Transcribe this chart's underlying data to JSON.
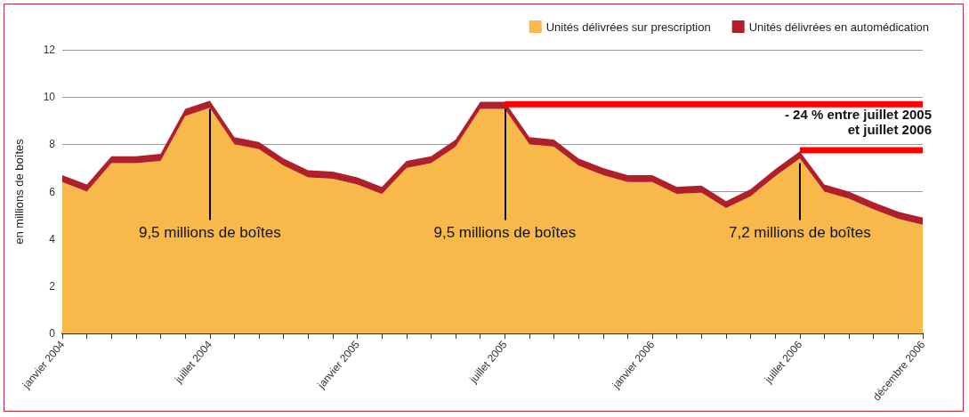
{
  "chart_data": {
    "type": "area",
    "stacked": true,
    "ylabel": "en millions de boîtes",
    "categories": [
      "janvier 2004",
      null,
      null,
      null,
      null,
      null,
      "juillet 2004",
      null,
      null,
      null,
      null,
      null,
      "janvier 2005",
      null,
      null,
      null,
      null,
      null,
      "juillet 2005",
      null,
      null,
      null,
      null,
      null,
      "janvier 2006",
      null,
      null,
      null,
      null,
      null,
      "juillet 2006",
      null,
      null,
      null,
      null,
      "décembre 2006"
    ],
    "series": [
      {
        "name": "Unités délivrées sur prescription",
        "color": "#f9b94a",
        "values": [
          6.4,
          6.0,
          7.2,
          7.2,
          7.3,
          9.2,
          9.55,
          8.0,
          7.8,
          7.1,
          6.6,
          6.55,
          6.3,
          5.9,
          7.0,
          7.2,
          7.9,
          9.5,
          9.5,
          8.0,
          7.9,
          7.1,
          6.7,
          6.4,
          6.4,
          5.9,
          5.95,
          5.3,
          5.8,
          6.65,
          7.4,
          6.0,
          5.7,
          5.25,
          4.85,
          4.6
        ]
      },
      {
        "name": "Unités délivrées en automédication",
        "color": "#b0202a",
        "values": [
          0.3,
          0.3,
          0.3,
          0.3,
          0.3,
          0.3,
          0.3,
          0.3,
          0.3,
          0.3,
          0.3,
          0.3,
          0.3,
          0.3,
          0.3,
          0.3,
          0.3,
          0.3,
          0.3,
          0.3,
          0.3,
          0.3,
          0.3,
          0.3,
          0.3,
          0.3,
          0.3,
          0.3,
          0.3,
          0.3,
          0.3,
          0.3,
          0.3,
          0.3,
          0.3,
          0.3
        ]
      },
      {
        "type": "line",
        "color": "#ff0000",
        "values": [
          null,
          null,
          null,
          null,
          null,
          null,
          null,
          null,
          null,
          null,
          null,
          null,
          null,
          null,
          null,
          null,
          null,
          null,
          9.7,
          9.7,
          9.7,
          9.7,
          9.7,
          9.7,
          9.7,
          9.7,
          9.7,
          9.7,
          9.7,
          9.7,
          9.7,
          9.7,
          9.7,
          9.7,
          9.7,
          9.7
        ]
      },
      {
        "type": "line",
        "color": "#ff0000",
        "values": [
          null,
          null,
          null,
          null,
          null,
          null,
          null,
          null,
          null,
          null,
          null,
          null,
          null,
          null,
          null,
          null,
          null,
          null,
          null,
          null,
          null,
          null,
          null,
          null,
          null,
          null,
          null,
          null,
          null,
          null,
          7.75,
          7.75,
          7.75,
          7.75,
          7.75,
          7.75
        ]
      }
    ],
    "ylim": [
      0,
      12
    ],
    "yticks": [
      0,
      2,
      4,
      6,
      8,
      10,
      12
    ],
    "grid": "y",
    "legend": "top right",
    "annotations": [
      {
        "text": "9,5 millions de boîtes",
        "x": "juillet 2004",
        "y": 9.5
      },
      {
        "text": "9,5 millions de boîtes",
        "x": "juillet 2005",
        "y": 9.5
      },
      {
        "text": "7,2 millions de boîtes",
        "x": "juillet 2006",
        "y": 7.2
      },
      "- 24 % entre juillet 2005\net juillet 2006"
    ]
  }
}
